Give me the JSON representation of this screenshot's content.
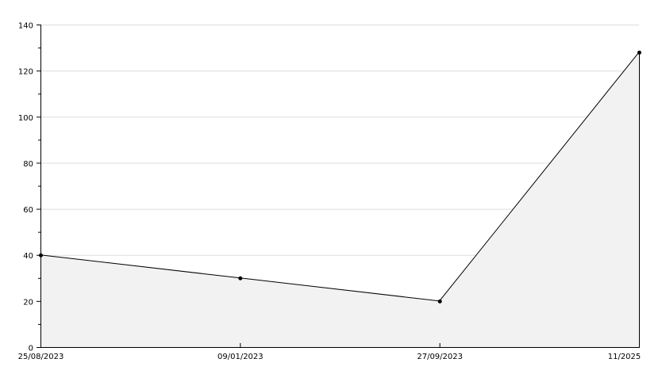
{
  "chart_data": {
    "type": "area",
    "title": "",
    "xlabel": "",
    "ylabel": "",
    "x": [
      "25/08/2023",
      "09/01/2023",
      "27/09/2023",
      "11/2025"
    ],
    "series": [
      {
        "values": [
          40,
          30,
          20,
          128
        ]
      }
    ],
    "ylim": [
      0,
      140
    ],
    "yticks": [
      0,
      20,
      40,
      60,
      80,
      100,
      120,
      140
    ],
    "y_minor_step": 10,
    "grid": true,
    "legend": "none",
    "colors": {
      "line": "#000000",
      "fill": "#f2f2f2",
      "grid": "#dddddd",
      "marker": "#000000"
    }
  }
}
